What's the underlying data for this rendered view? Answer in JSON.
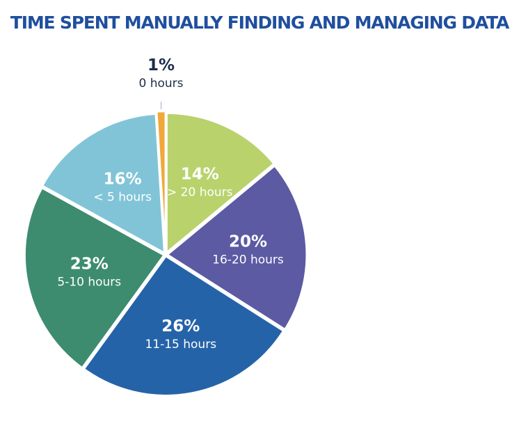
{
  "chart_data": {
    "type": "pie",
    "title": "TIME SPENT MANUALLY FINDING AND MANAGING DATA",
    "start_angle_deg": 0,
    "direction": "clockwise",
    "slices": [
      {
        "label": "> 20 hours",
        "value": 14,
        "display": "14%",
        "color": "#b9d26c"
      },
      {
        "label": "16-20 hours",
        "value": 20,
        "display": "20%",
        "color": "#5b5aa3"
      },
      {
        "label": "11-15 hours",
        "value": 26,
        "display": "26%",
        "color": "#2563a8"
      },
      {
        "label": "5-10 hours",
        "value": 23,
        "display": "23%",
        "color": "#3d8c6f"
      },
      {
        "label": "< 5 hours",
        "value": 16,
        "display": "16%",
        "color": "#81c4d8"
      },
      {
        "label": "0 hours",
        "value": 1,
        "display": "1%",
        "color": "#f0a83a"
      }
    ],
    "label_colors": {
      "inside": "#ffffff",
      "outside": "#1e2d4a"
    }
  }
}
